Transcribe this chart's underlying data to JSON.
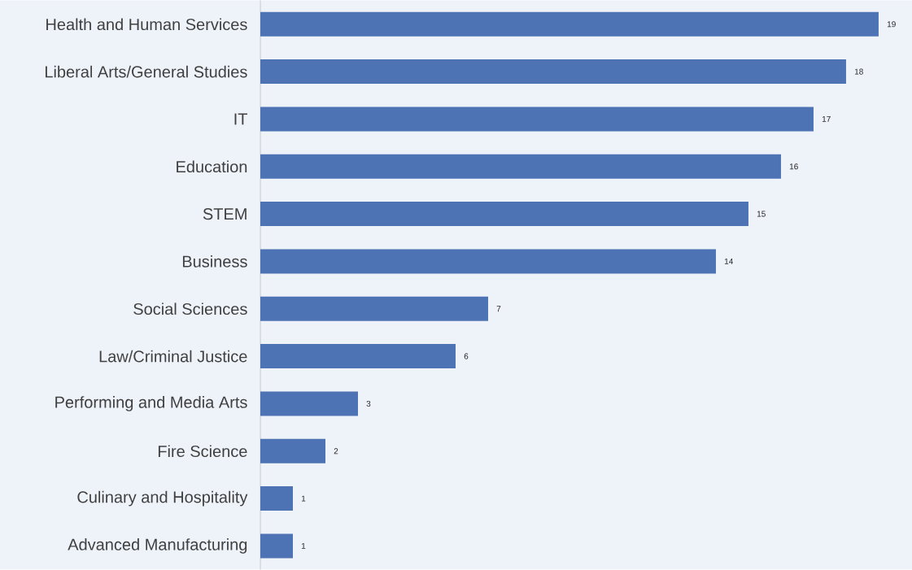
{
  "chart_data": {
    "type": "bar",
    "orientation": "horizontal",
    "categories": [
      "Health and Human Services",
      "Liberal Arts/General Studies",
      "IT",
      "Education",
      "STEM",
      "Business",
      "Social Sciences",
      "Law/Criminal Justice",
      "Performing and Media Arts",
      "Fire Science",
      "Culinary and Hospitality",
      "Advanced Manufacturing"
    ],
    "values": [
      19,
      18,
      17,
      16,
      15,
      14,
      7,
      6,
      3,
      2,
      1,
      1
    ],
    "color": "#4e73b4",
    "data_labels": true
  }
}
